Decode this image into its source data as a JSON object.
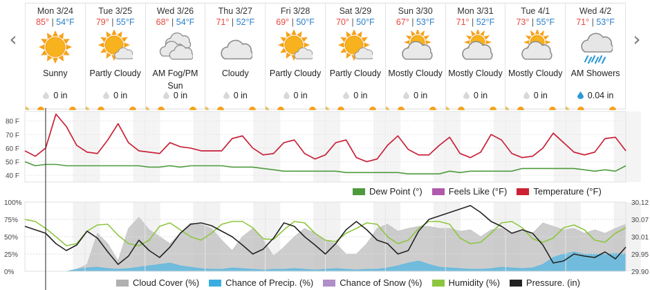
{
  "nav": {
    "prev": "‹",
    "next": "›"
  },
  "days": [
    {
      "date": "Mon 3/24",
      "hi": "85°",
      "lo": "54°F",
      "cond": "Sunny",
      "precip": "0 in",
      "icon": "sunny-icon"
    },
    {
      "date": "Tue 3/25",
      "hi": "79°",
      "lo": "55°F",
      "cond": "Partly Cloudy",
      "precip": "0 in",
      "icon": "partly-cloudy-icon"
    },
    {
      "date": "Wed 3/26",
      "hi": "68°",
      "lo": "54°F",
      "cond": "AM Fog/PM Sun",
      "precip": "0 in",
      "icon": "fog-icon"
    },
    {
      "date": "Thu 3/27",
      "hi": "71°",
      "lo": "52°F",
      "cond": "Cloudy",
      "precip": "0 in",
      "icon": "cloudy-icon"
    },
    {
      "date": "Fri 3/28",
      "hi": "69°",
      "lo": "50°F",
      "cond": "Partly Cloudy",
      "precip": "0 in",
      "icon": "partly-cloudy-icon"
    },
    {
      "date": "Sat 3/29",
      "hi": "70°",
      "lo": "50°F",
      "cond": "Partly Cloudy",
      "precip": "0 in",
      "icon": "partly-cloudy-icon"
    },
    {
      "date": "Sun 3/30",
      "hi": "67°",
      "lo": "53°F",
      "cond": "Mostly Cloudy",
      "precip": "0 in",
      "icon": "mostly-cloudy-icon"
    },
    {
      "date": "Mon 3/31",
      "hi": "71°",
      "lo": "52°F",
      "cond": "Mostly Cloudy",
      "precip": "0 in",
      "icon": "mostly-cloudy-icon"
    },
    {
      "date": "Tue 4/1",
      "hi": "73°",
      "lo": "55°F",
      "cond": "Mostly Cloudy",
      "precip": "0 in",
      "icon": "mostly-cloudy-icon"
    },
    {
      "date": "Wed 4/2",
      "hi": "71°",
      "lo": "53°F",
      "cond": "AM Showers",
      "precip": "0.04 in",
      "icon": "showers-icon"
    }
  ],
  "chart_data": [
    {
      "type": "line",
      "yticks": [
        "80 F",
        "70 F",
        "60 F",
        "50 F",
        "40 F"
      ],
      "ylim": [
        35,
        87
      ],
      "grid": true,
      "legend": "bottom-right",
      "series": [
        {
          "name": "Temperature (°F)",
          "color": "#cc2233",
          "values": [
            58,
            54,
            60,
            85,
            76,
            62,
            57,
            56,
            66,
            78,
            64,
            58,
            57,
            56,
            64,
            61,
            60,
            58,
            58,
            58,
            67,
            69,
            60,
            55,
            56,
            64,
            66,
            56,
            52,
            55,
            64,
            66,
            53,
            50,
            52,
            62,
            69,
            59,
            55,
            55,
            62,
            68,
            56,
            53,
            57,
            70,
            66,
            56,
            53,
            54,
            60,
            71,
            64,
            57,
            55,
            57,
            67,
            68,
            58
          ]
        },
        {
          "name": "Feels Like (°F)",
          "color": "#b05aab",
          "values": [
            58,
            54,
            60,
            85,
            76,
            62,
            57,
            56,
            66,
            78,
            64,
            58,
            57,
            56,
            64,
            61,
            60,
            58,
            58,
            58,
            67,
            69,
            60,
            55,
            56,
            64,
            66,
            56,
            52,
            55,
            64,
            66,
            53,
            50,
            52,
            62,
            69,
            59,
            55,
            55,
            62,
            68,
            56,
            53,
            57,
            70,
            66,
            56,
            53,
            54,
            60,
            71,
            64,
            57,
            55,
            57,
            67,
            68,
            58
          ]
        },
        {
          "name": "Dew Point (°)",
          "color": "#4c9a3c",
          "values": [
            50,
            47,
            48,
            48,
            47,
            47,
            47,
            47,
            47,
            47,
            47,
            47,
            46,
            46,
            47,
            46,
            47,
            47,
            47,
            47,
            46,
            46,
            46,
            45,
            44,
            43,
            43,
            43,
            43,
            43,
            43,
            42,
            42,
            42,
            42,
            42,
            42,
            41,
            41,
            41,
            41,
            43,
            42,
            43,
            43,
            43,
            43,
            43,
            45,
            45,
            45,
            45,
            45,
            45,
            44,
            43,
            44,
            43,
            47
          ]
        }
      ]
    },
    {
      "type": "area",
      "yticks_left": [
        "100%",
        "75%",
        "50%",
        "25%",
        "0%"
      ],
      "yticks_right": [
        "30.12",
        "30.07",
        "30.01",
        "29.95",
        "29.90"
      ],
      "ylim": [
        0,
        100
      ],
      "grid": true,
      "legend": "bottom",
      "series": [
        {
          "name": "Cloud Cover (%)",
          "color": "#bcbcbc",
          "values": [
            0,
            0,
            0,
            0,
            0,
            3,
            10,
            55,
            40,
            15,
            62,
            78,
            60,
            50,
            40,
            55,
            70,
            68,
            62,
            45,
            30,
            50,
            62,
            45,
            22,
            35,
            50,
            62,
            55,
            45,
            40,
            25,
            25,
            40,
            62,
            68,
            58,
            62,
            65,
            65,
            62,
            62,
            58,
            60,
            50,
            60,
            62,
            55,
            58,
            55,
            70,
            65,
            60,
            62,
            55,
            60,
            55,
            62,
            68
          ]
        },
        {
          "name": "Chance of Precip. (%)",
          "color": "#4aafd4",
          "values": [
            0,
            0,
            0,
            0,
            0,
            3,
            5,
            6,
            4,
            3,
            4,
            6,
            8,
            10,
            12,
            8,
            6,
            4,
            3,
            3,
            5,
            4,
            3,
            2,
            3,
            3,
            4,
            3,
            2,
            3,
            4,
            3,
            2,
            3,
            3,
            5,
            8,
            12,
            15,
            10,
            6,
            5,
            4,
            3,
            3,
            4,
            6,
            5,
            4,
            5,
            10,
            20,
            25,
            28,
            25,
            25,
            25,
            26,
            25
          ]
        },
        {
          "name": "Chance of Snow (%)",
          "color": "#b08ec8",
          "values": []
        },
        {
          "name": "Humidity (%)",
          "color": "#8cc63f",
          "values": [
            75,
            72,
            62,
            50,
            37,
            40,
            58,
            67,
            68,
            52,
            40,
            37,
            45,
            65,
            70,
            60,
            50,
            45,
            55,
            68,
            72,
            72,
            63,
            47,
            46,
            60,
            72,
            70,
            55,
            45,
            43,
            55,
            62,
            70,
            68,
            50,
            40,
            45,
            62,
            72,
            72,
            68,
            48,
            40,
            42,
            55,
            70,
            72,
            63,
            47,
            42,
            48,
            63,
            67,
            60,
            45,
            42,
            55,
            63
          ]
        },
        {
          "name": "Pressure. (in)",
          "color": "#222222",
          "values": [
            65,
            60,
            55,
            40,
            30,
            38,
            58,
            48,
            28,
            10,
            22,
            45,
            30,
            20,
            35,
            55,
            68,
            70,
            66,
            58,
            50,
            38,
            25,
            32,
            48,
            70,
            65,
            50,
            38,
            25,
            40,
            60,
            72,
            60,
            45,
            40,
            25,
            30,
            58,
            75,
            80,
            85,
            90,
            95,
            85,
            72,
            65,
            55,
            60,
            55,
            38,
            12,
            15,
            25,
            22,
            20,
            28,
            18,
            35
          ]
        }
      ]
    }
  ],
  "legend_top": [
    {
      "label": "Dew Point (°)",
      "color": "#4c9a3c"
    },
    {
      "label": "Feels Like (°F)",
      "color": "#b05aab"
    },
    {
      "label": "Temperature (°F)",
      "color": "#cc2233"
    }
  ],
  "legend_bottom": [
    {
      "label": "Cloud Cover (%)",
      "color": "#b0b0b0"
    },
    {
      "label": "Chance of Precip. (%)",
      "color": "#3aaee0"
    },
    {
      "label": "Chance of Snow (%)",
      "color": "#b08ec8"
    },
    {
      "label": "Humidity (%)",
      "color": "#8cc63f"
    },
    {
      "label": "Pressure. (in)",
      "color": "#222222"
    }
  ]
}
